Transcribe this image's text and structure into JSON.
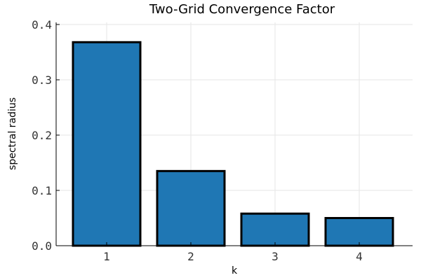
{
  "chart_data": {
    "type": "bar",
    "title": "Two-Grid Convergence Factor",
    "xlabel": "k",
    "ylabel": "spectral radius",
    "categories": [
      "1",
      "2",
      "3",
      "4"
    ],
    "values": [
      0.368,
      0.135,
      0.058,
      0.05
    ],
    "ylim": [
      0,
      0.4
    ],
    "yticks": [
      "0.0",
      "0.1",
      "0.2",
      "0.3",
      "0.4"
    ],
    "bar_color": "#1f77b4",
    "grid": true,
    "legend": false
  }
}
